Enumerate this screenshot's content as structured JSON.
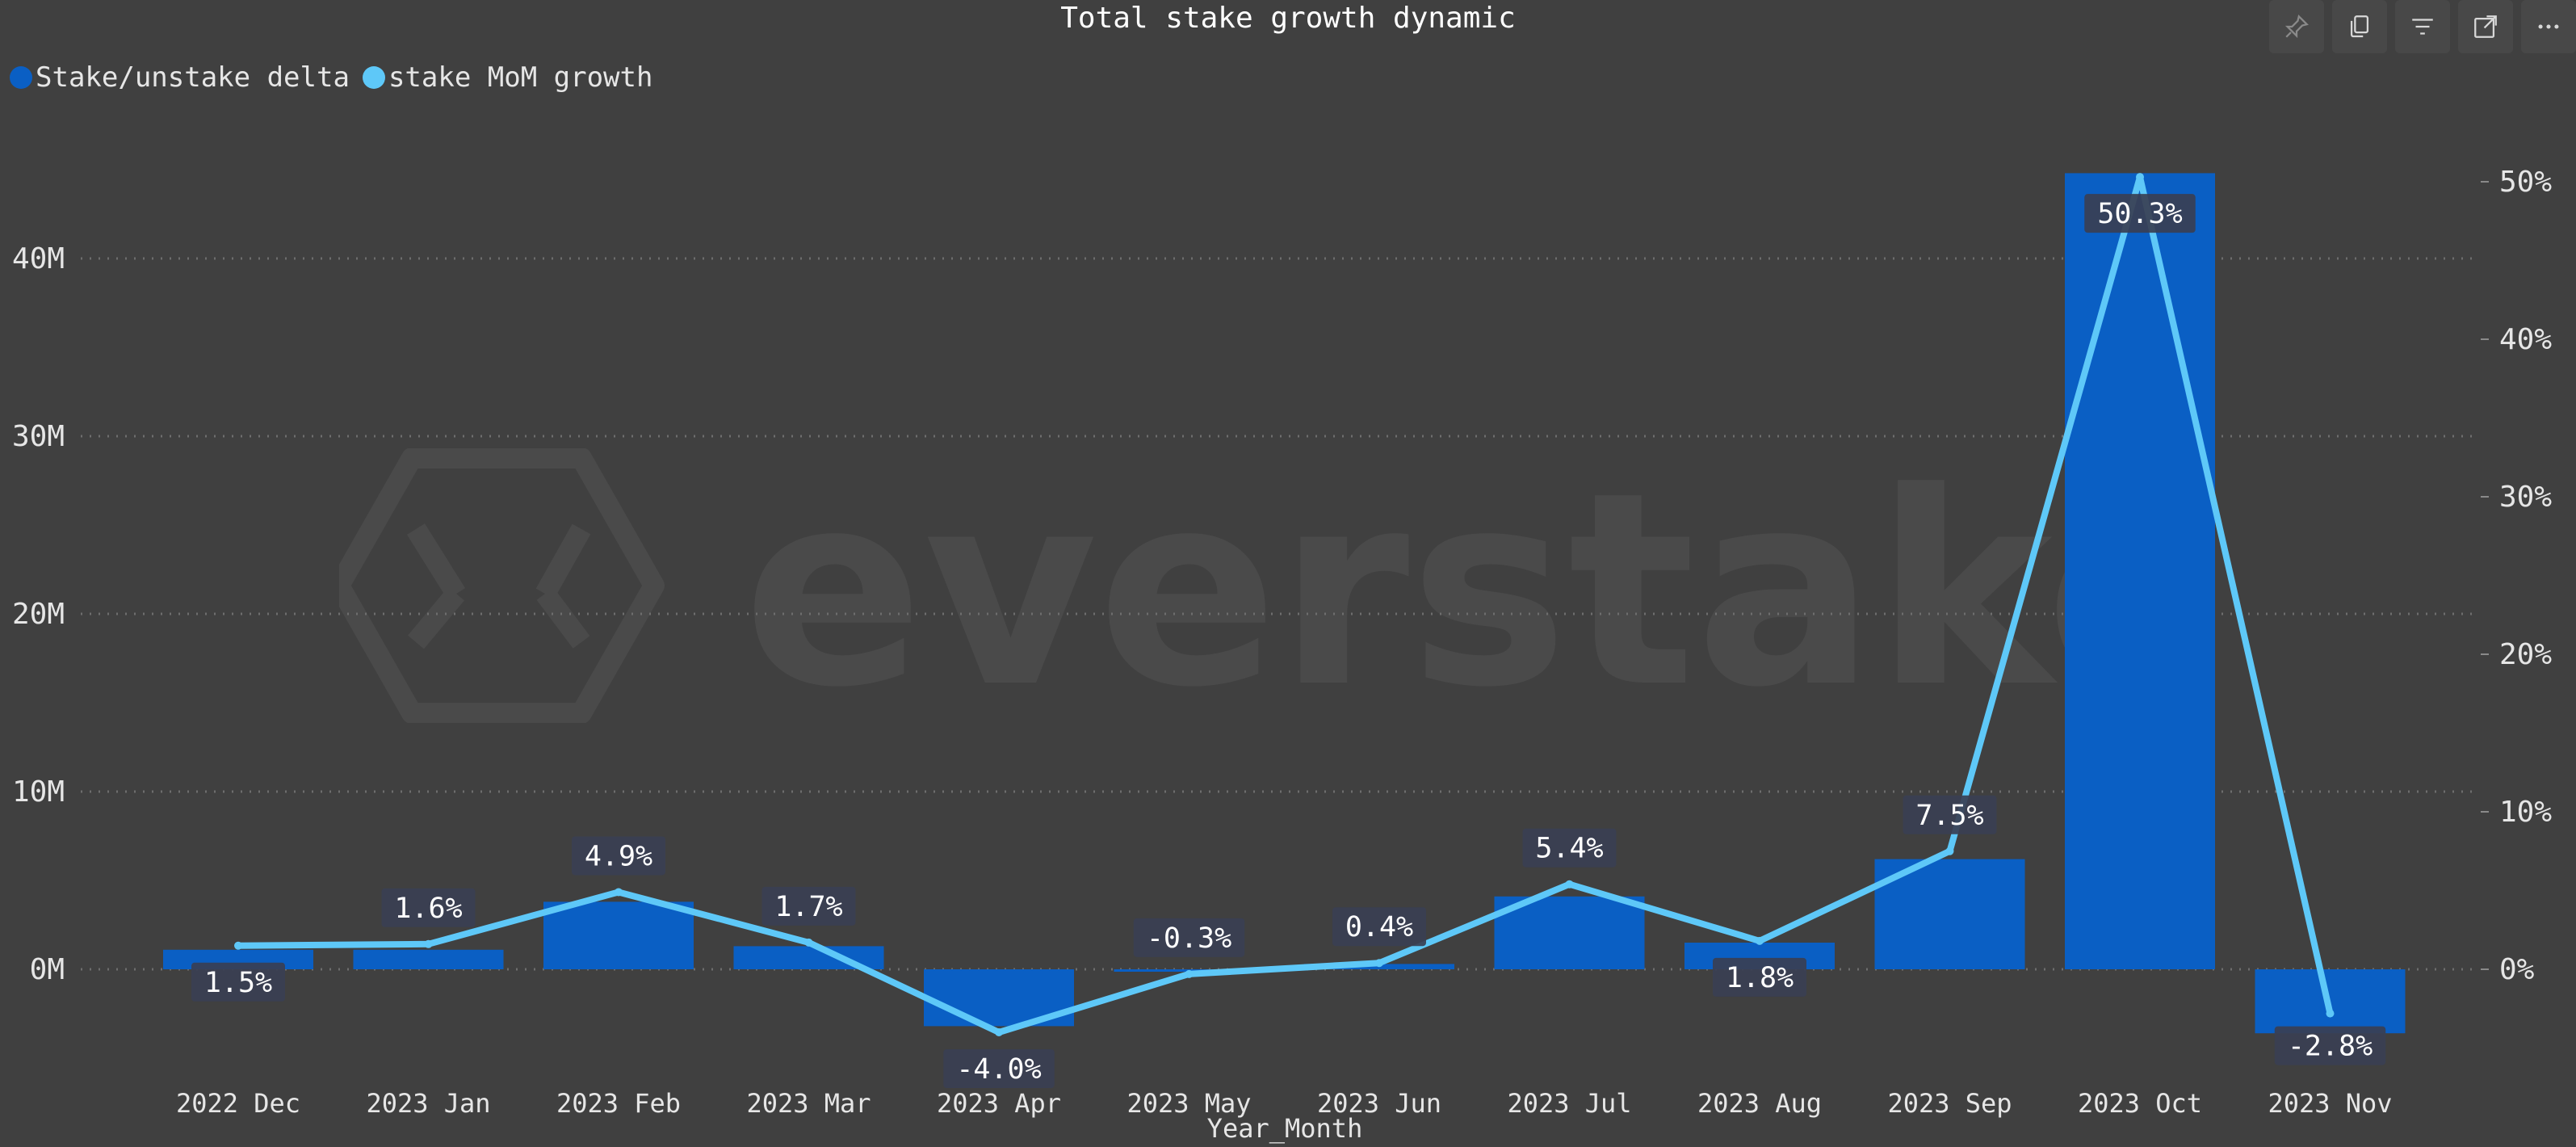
{
  "title": "Total stake growth dynamic",
  "watermark": "everstake",
  "toolbar": {
    "buttons": [
      {
        "name": "pin-button",
        "icon": "pin-icon"
      },
      {
        "name": "copy-visual-button",
        "icon": "copy-icon"
      },
      {
        "name": "filter-button",
        "icon": "filter-icon"
      },
      {
        "name": "focus-mode-button",
        "icon": "expand-icon"
      },
      {
        "name": "more-options-button",
        "icon": "more-icon"
      }
    ]
  },
  "colors": {
    "background": "#404040",
    "bars": "#0a5fc4",
    "line": "#5ec8f8",
    "grid": "#6e6e6e",
    "label_bg": "#3a3f52"
  },
  "chart_data": {
    "type": "bar",
    "title": "Total stake growth dynamic",
    "xlabel": "Year_Month",
    "categories": [
      "2022 Dec",
      "2023 Jan",
      "2023 Feb",
      "2023 Mar",
      "2023 Apr",
      "2023 May",
      "2023 Jun",
      "2023 Jul",
      "2023 Aug",
      "2023 Sep",
      "2023 Oct",
      "2023 Nov"
    ],
    "legend": {
      "position": "top-left"
    },
    "grid": true,
    "y_left": {
      "ticks": [
        "0M",
        "10M",
        "20M",
        "30M",
        "40M"
      ],
      "tick_values": [
        0,
        10,
        20,
        30,
        40
      ],
      "unit": "M",
      "ylim": [
        -6.3,
        55
      ]
    },
    "y_right": {
      "ticks": [
        "0%",
        "10%",
        "20%",
        "30%",
        "40%",
        "50%"
      ],
      "tick_values": [
        0,
        10,
        20,
        30,
        40,
        50
      ],
      "unit": "%",
      "ylim": [
        -5.5,
        50.5
      ]
    },
    "series": [
      {
        "name": "Stake/unstake delta",
        "type": "bar",
        "axis": "left",
        "color": "#0a5fc4",
        "values": [
          1.1,
          1.1,
          3.8,
          1.3,
          -3.2,
          -0.1,
          0.3,
          4.1,
          1.5,
          6.2,
          44.8,
          -3.6
        ]
      },
      {
        "name": "stake MoM growth",
        "type": "line",
        "axis": "right",
        "color": "#5ec8f8",
        "values": [
          1.5,
          1.6,
          4.9,
          1.7,
          -4.0,
          -0.3,
          0.4,
          5.4,
          1.8,
          7.5,
          50.3,
          -2.8
        ],
        "labels": [
          "1.5%",
          "1.6%",
          "4.9%",
          "1.7%",
          "-4.0%",
          "-0.3%",
          "0.4%",
          "5.4%",
          "1.8%",
          "7.5%",
          "50.3%",
          "-2.8%"
        ]
      }
    ]
  }
}
